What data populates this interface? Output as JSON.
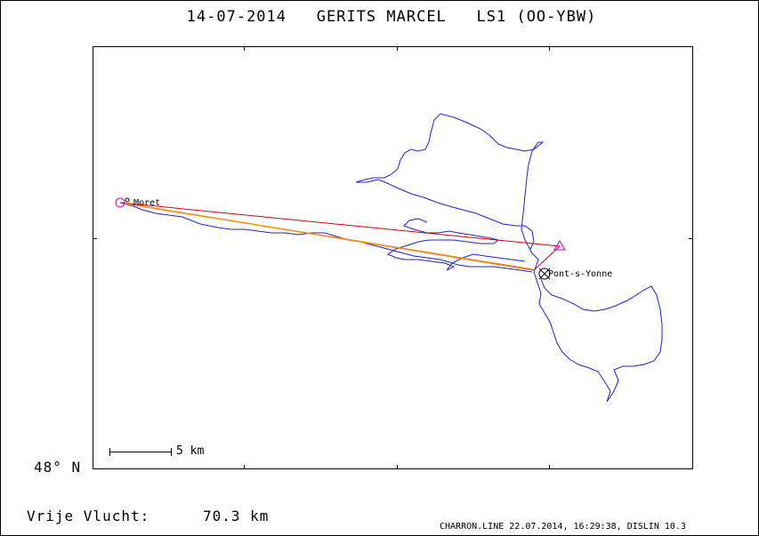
{
  "title": {
    "date": "14-07-2014",
    "pilot": "GERITS MARCEL",
    "glider": "LS1 (OO-YBW)"
  },
  "map": {
    "latitude_label": "48° N",
    "scale_bar_label": "5 km",
    "places": [
      {
        "name": "Moret"
      },
      {
        "name": "Pont-s-Yonne"
      }
    ]
  },
  "footer": {
    "distance_label": "Vrije Vlucht:",
    "distance_value": "70.3 km",
    "credits": "CHARRON.LINE 22.07.2014, 16:29:38, DISLIN 10.3"
  },
  "colors": {
    "track": "#2020e0",
    "task_line": "#e00000",
    "leg_line": "#ff8c00",
    "start_marker": "#cc00cc",
    "frame": "#000000"
  }
}
